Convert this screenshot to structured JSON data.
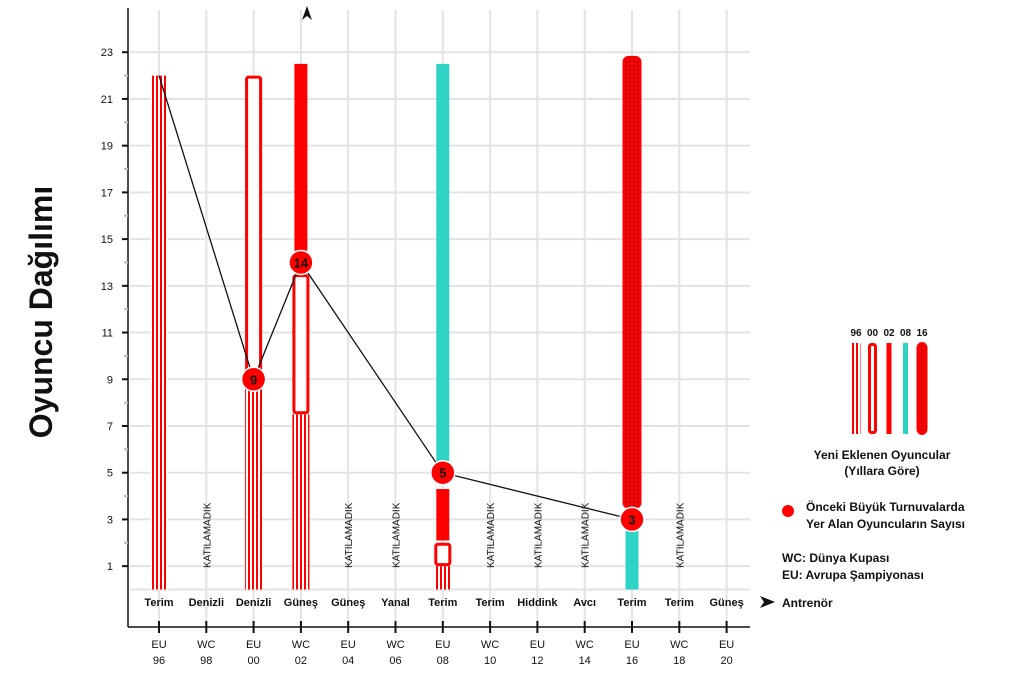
{
  "chart_data": {
    "type": "bar",
    "ylabel": "Oyuncu Dağılımı",
    "xlabel": "Antrenör",
    "ylim": [
      0,
      23
    ],
    "y_ticks": [
      1,
      3,
      5,
      7,
      9,
      11,
      13,
      15,
      17,
      19,
      21,
      23
    ],
    "grid": true,
    "categories": [
      {
        "top": "EU",
        "bottom": "96",
        "coach": "Terim"
      },
      {
        "top": "WC",
        "bottom": "98",
        "coach": "Denizli",
        "note": "KATILAMADIK"
      },
      {
        "top": "EU",
        "bottom": "00",
        "coach": "Denizli"
      },
      {
        "top": "WC",
        "bottom": "02",
        "coach": "Güneş"
      },
      {
        "top": "EU",
        "bottom": "04",
        "coach": "Güneş",
        "note": "KATILAMADIK"
      },
      {
        "top": "WC",
        "bottom": "06",
        "coach": "Yanal",
        "note": "KATILAMADIK"
      },
      {
        "top": "EU",
        "bottom": "08",
        "coach": "Terim"
      },
      {
        "top": "WC",
        "bottom": "10",
        "coach": "Terim",
        "note": "KATILAMADIK"
      },
      {
        "top": "EU",
        "bottom": "12",
        "coach": "Hiddink",
        "note": "KATILAMADIK"
      },
      {
        "top": "WC",
        "bottom": "14",
        "coach": "Avcı",
        "note": "KATILAMADIK"
      },
      {
        "top": "EU",
        "bottom": "16",
        "coach": "Terim"
      },
      {
        "top": "WC",
        "bottom": "18",
        "coach": "Terim",
        "note": "KATILAMADIK"
      },
      {
        "top": "EU",
        "bottom": "20",
        "coach": "Güneş"
      }
    ],
    "stacks": [
      {
        "category": 0,
        "segments": [
          {
            "style": "96",
            "from": 0,
            "to": 22
          }
        ]
      },
      {
        "category": 2,
        "segments": [
          {
            "style": "96",
            "from": 0,
            "to": 9
          },
          {
            "style": "00",
            "from": 9,
            "to": 22
          }
        ]
      },
      {
        "category": 3,
        "segments": [
          {
            "style": "96",
            "from": 0,
            "to": 7.5
          },
          {
            "style": "00",
            "from": 7.5,
            "to": 13.5
          },
          {
            "style": "02",
            "from": 14.5,
            "to": 22.5
          }
        ]
      },
      {
        "category": 6,
        "segments": [
          {
            "style": "96",
            "from": 0,
            "to": 1
          },
          {
            "style": "00",
            "from": 1,
            "to": 2
          },
          {
            "style": "02",
            "from": 2.1,
            "to": 4.3
          },
          {
            "style": "08",
            "from": 5.5,
            "to": 22.5
          }
        ]
      },
      {
        "category": 10,
        "segments": [
          {
            "style": "08",
            "from": 0,
            "to": 2.5
          },
          {
            "style": "16",
            "from": 3.5,
            "to": 22.8
          }
        ]
      }
    ],
    "previous_players_line": [
      {
        "category": 0,
        "value": 22,
        "label": ""
      },
      {
        "category": 2,
        "value": 9,
        "label": "9"
      },
      {
        "category": 3,
        "value": 14,
        "label": "14"
      },
      {
        "category": 6,
        "value": 5,
        "label": "5"
      },
      {
        "category": 10,
        "value": 3,
        "label": "3"
      }
    ],
    "legend": {
      "bar_years": [
        "96",
        "00",
        "02",
        "08",
        "16"
      ],
      "bar_title": "Yeni Eklenen Oyuncular",
      "bar_subtitle": "(Yıllara Göre)",
      "dot_line1": "Önceki Büyük Turnuvalarda",
      "dot_line2": "Yer Alan Oyuncuların Sayısı",
      "abbr_wc": "WC: Dünya Kupası",
      "abbr_eu": "EU: Avrupa Şampiyonası",
      "placement": "right"
    },
    "colors": {
      "red": "#ff0000",
      "teal": "#2fd3c5",
      "grid": "#e3e3e3",
      "line": "#111111"
    }
  }
}
